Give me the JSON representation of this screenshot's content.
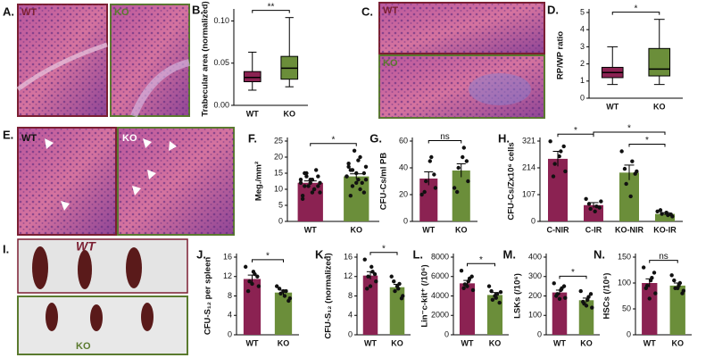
{
  "images": [
    {
      "panel": "A.",
      "labels": [
        "WT",
        "KO"
      ]
    },
    {
      "panel": "C.",
      "labels": [
        "WT",
        "KO"
      ]
    },
    {
      "panel": "E.",
      "labels": [
        "WT",
        "KO"
      ]
    },
    {
      "panel": "I.",
      "labels": [
        "WT",
        "KO"
      ]
    }
  ],
  "chart_data": [
    {
      "panel": "B.",
      "type": "box",
      "ylabel": "Trabecular area (normalized)",
      "categories": [
        "WT",
        "KO"
      ],
      "colors": [
        "#8b2252",
        "#6b8e3a"
      ],
      "stats": [
        {
          "min": 0.018,
          "q1": 0.028,
          "median": 0.033,
          "q3": 0.04,
          "max": 0.063
        },
        {
          "min": 0.022,
          "q1": 0.031,
          "median": 0.044,
          "q3": 0.058,
          "max": 0.104
        }
      ],
      "ylim": [
        0,
        0.11
      ],
      "yticks": [
        {
          "value": 0,
          "label": "0.00"
        },
        {
          "value": 0.05,
          "label": "0.05"
        },
        {
          "value": 0.1,
          "label": "0.10"
        }
      ],
      "brackets": [
        {
          "label": "**",
          "between": [
            "WT",
            "KO"
          ]
        }
      ]
    },
    {
      "panel": "D.",
      "type": "box",
      "ylabel": "RP/WP ratio",
      "categories": [
        "WT",
        "KO"
      ],
      "colors": [
        "#8b2252",
        "#6b8e3a"
      ],
      "stats": [
        {
          "min": 0.8,
          "q1": 1.2,
          "median": 1.5,
          "q3": 1.8,
          "max": 3.0
        },
        {
          "min": 0.8,
          "q1": 1.3,
          "median": 1.7,
          "q3": 2.9,
          "max": 4.6
        }
      ],
      "ylim": [
        0,
        5
      ],
      "yticks": [
        0,
        1,
        2,
        3,
        4,
        5
      ],
      "brackets": [
        {
          "label": "*",
          "between": [
            "WT",
            "KO"
          ]
        }
      ]
    },
    {
      "panel": "F.",
      "type": "bar",
      "ylabel": "Meg./mm²",
      "categories": [
        "WT",
        "KO"
      ],
      "colors": [
        "#8b2252",
        "#6b8e3a"
      ],
      "values": [
        12,
        14
      ],
      "errors": [
        0.6,
        0.8
      ],
      "points": [
        [
          12,
          10,
          15,
          9,
          13,
          11,
          14,
          12,
          8,
          16,
          11,
          13,
          10,
          14,
          12,
          9,
          15,
          11,
          13,
          7
        ],
        [
          14,
          20,
          11,
          17,
          13,
          16,
          9,
          15,
          18,
          12,
          22,
          14,
          10,
          16,
          13,
          19,
          8,
          15,
          12,
          17
        ]
      ],
      "ylim": [
        0,
        25
      ],
      "yticks": [
        0,
        5,
        10,
        15,
        20,
        25
      ],
      "brackets": [
        {
          "label": "*",
          "between": [
            "WT",
            "KO"
          ]
        }
      ]
    },
    {
      "panel": "G.",
      "type": "bar",
      "ylabel": "CFU-Cs/ml PB",
      "categories": [
        "WT",
        "KO"
      ],
      "colors": [
        "#8b2252",
        "#6b8e3a"
      ],
      "values": [
        32,
        38
      ],
      "errors": [
        5,
        5
      ],
      "points": [
        [
          20,
          48,
          30,
          25,
          45,
          22,
          35
        ],
        [
          25,
          55,
          40,
          30,
          48,
          22,
          45
        ]
      ],
      "ylim": [
        0,
        60
      ],
      "yticks": [
        0,
        20,
        40,
        60
      ],
      "brackets": [
        {
          "label": "ns",
          "between": [
            "WT",
            "KO"
          ]
        }
      ]
    },
    {
      "panel": "H.",
      "type": "bar",
      "ylabel": "CFU-Cs/Zx10⁶ cells",
      "categories": [
        "C-NIR",
        "C-IR",
        "KO-NIR",
        "KO-IR"
      ],
      "colors": [
        "#8b2252",
        "#8b2252",
        "#6b8e3a",
        "#6b8e3a"
      ],
      "values": [
        250,
        65,
        195,
        30
      ],
      "errors": [
        30,
        10,
        30,
        5
      ],
      "points": [
        [
          320,
          280,
          230,
          200,
          260,
          180,
          300
        ],
        [
          90,
          60,
          50,
          80,
          40,
          70,
          55
        ],
        [
          280,
          240,
          150,
          200,
          100,
          210,
          190
        ],
        [
          40,
          25,
          30,
          20,
          35,
          45,
          28
        ]
      ],
      "ylim": [
        0,
        321
      ],
      "yticks": [
        0,
        107,
        214,
        321
      ],
      "brackets": [
        {
          "label": "*",
          "between": [
            "C-NIR",
            "C-IR"
          ]
        },
        {
          "label": "*",
          "between": [
            "KO-NIR",
            "KO-IR"
          ]
        },
        {
          "label": "*",
          "between": [
            "C-IR",
            "KO-IR"
          ]
        }
      ]
    },
    {
      "panel": "J.",
      "type": "bar",
      "ylabel": "CFU-S₁₂ per spleen",
      "categories": [
        "WT",
        "KO"
      ],
      "colors": [
        "#8b2252",
        "#6b8e3a"
      ],
      "values": [
        11.5,
        8.7
      ],
      "errors": [
        0.8,
        0.5
      ],
      "points": [
        [
          14,
          12.5,
          11,
          10,
          13,
          9,
          12,
          10.5
        ],
        [
          10,
          9,
          8.5,
          7.5,
          8,
          9.5,
          7,
          9
        ]
      ],
      "ylim": [
        0,
        16
      ],
      "yticks": [
        0,
        4,
        8,
        12,
        16
      ],
      "brackets": [
        {
          "label": "*",
          "between": [
            "WT",
            "KO"
          ]
        }
      ]
    },
    {
      "panel": "K.",
      "type": "bar",
      "ylabel": "CFU-S₁₂ (normalized)",
      "categories": [
        "WT",
        "KO"
      ],
      "colors": [
        "#8b2252",
        "#6b8e3a"
      ],
      "values": [
        12.2,
        9.8
      ],
      "errors": [
        0.8,
        0.6
      ],
      "points": [
        [
          15.5,
          13,
          12,
          11,
          14,
          9.5,
          12.5,
          10
        ],
        [
          12,
          10.5,
          9,
          8,
          9.5,
          11,
          7.5,
          10
        ]
      ],
      "ylim": [
        0,
        16
      ],
      "yticks": [
        0,
        4,
        8,
        12,
        16
      ],
      "brackets": [
        {
          "label": "*",
          "between": [
            "WT",
            "KO"
          ]
        }
      ]
    },
    {
      "panel": "L.",
      "type": "bar",
      "ylabel": "Lin⁻c-kit⁺ (/10⁶)",
      "categories": [
        "WT",
        "KO"
      ],
      "colors": [
        "#8b2252",
        "#6b8e3a"
      ],
      "values": [
        5300,
        4100
      ],
      "errors": [
        300,
        250
      ],
      "points": [
        [
          6600,
          5800,
          5200,
          4600,
          5500,
          4800,
          6000,
          5000
        ],
        [
          5000,
          4200,
          3600,
          4400,
          3800,
          4500,
          3300,
          4000
        ]
      ],
      "ylim": [
        0,
        8000
      ],
      "yticks": [
        0,
        2000,
        4000,
        6000,
        8000
      ],
      "brackets": [
        {
          "label": "*",
          "between": [
            "WT",
            "KO"
          ]
        }
      ]
    },
    {
      "panel": "M.",
      "type": "bar",
      "ylabel": "LSKs (/10⁶)",
      "categories": [
        "WT",
        "KO"
      ],
      "colors": [
        "#8b2252",
        "#6b8e3a"
      ],
      "values": [
        218,
        178
      ],
      "errors": [
        12,
        11
      ],
      "points": [
        [
          265,
          240,
          210,
          190,
          230,
          200,
          250,
          185
        ],
        [
          225,
          195,
          160,
          140,
          180,
          170,
          210,
          150
        ]
      ],
      "ylim": [
        0,
        400
      ],
      "yticks": [
        0,
        100,
        200,
        300,
        400
      ],
      "brackets": [
        {
          "label": "*",
          "between": [
            "WT",
            "KO"
          ]
        }
      ]
    },
    {
      "panel": "N.",
      "type": "bar",
      "ylabel": "HSCs (/10⁶)",
      "categories": [
        "WT",
        "KO"
      ],
      "colors": [
        "#8b2252",
        "#6b8e3a"
      ],
      "values": [
        100,
        95
      ],
      "errors": [
        8,
        5
      ],
      "points": [
        [
          130,
          110,
          95,
          80,
          105,
          90,
          120,
          70
        ],
        [
          115,
          100,
          90,
          85,
          95,
          105,
          80,
          90
        ]
      ],
      "ylim": [
        0,
        150
      ],
      "yticks": [
        0,
        50,
        100,
        150
      ],
      "brackets": [
        {
          "label": "ns",
          "between": [
            "WT",
            "KO"
          ]
        }
      ]
    }
  ]
}
